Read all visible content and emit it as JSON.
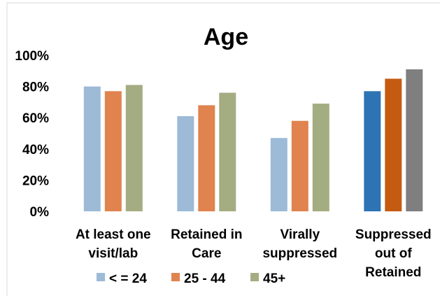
{
  "chart_data": {
    "type": "bar",
    "title": "Age",
    "ylim": [
      0,
      100
    ],
    "yticks": [
      "0%",
      "20%",
      "40%",
      "60%",
      "80%",
      "100%"
    ],
    "ytick_values": [
      0,
      20,
      40,
      60,
      80,
      100
    ],
    "grid": false,
    "legend_placement": "bottom-left",
    "categories": [
      [
        "At least one",
        "visit/lab"
      ],
      [
        "Retained in",
        "Care"
      ],
      [
        "Virally",
        "suppressed"
      ],
      [
        "Suppressed",
        "out of",
        "Retained"
      ]
    ],
    "series": [
      {
        "name": "< = 24",
        "values": [
          80,
          61,
          47,
          77
        ],
        "color": "#9dbad7",
        "colors": [
          "#9dbad7",
          "#9dbad7",
          "#9dbad7",
          "#2e74b5"
        ]
      },
      {
        "name": "25 - 44",
        "values": [
          77,
          68,
          58,
          85
        ],
        "color": "#e0834f",
        "colors": [
          "#e0834f",
          "#e0834f",
          "#e0834f",
          "#c55a11"
        ]
      },
      {
        "name": "45+",
        "values": [
          81,
          76,
          69,
          91
        ],
        "color": "#a4ac82",
        "colors": [
          "#a4ac82",
          "#a4ac82",
          "#a4ac82",
          "#7f7f7f"
        ]
      }
    ]
  }
}
